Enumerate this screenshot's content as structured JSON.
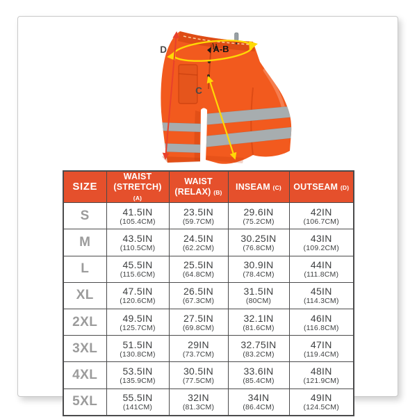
{
  "colors": {
    "header_bg": "#E5502C",
    "header_text": "#FFFFFF",
    "size_text": "#9B9B9B",
    "cell_text": "#3F4142",
    "table_border": "#4A4A4B",
    "page_border": "#C9C9C9",
    "pants_orange": "#F25A1E",
    "stripe_gray": "#A7ADAF",
    "measure_yellow": "#FFD905",
    "measure_red": "#E8412C",
    "label_gray": "#4A4A4A"
  },
  "illustration": {
    "labels": {
      "waist": "A-B",
      "inseam": "C",
      "outseam": "D"
    }
  },
  "table": {
    "columns": [
      {
        "id": "size",
        "title": "SIZE",
        "subtitle": "",
        "key": ""
      },
      {
        "id": "waist-stretch",
        "title": "WAIST",
        "subtitle": "(STRETCH)",
        "key": "(A)"
      },
      {
        "id": "waist-relax",
        "title": "WAIST",
        "subtitle": "(RELAX)",
        "key": "(B)"
      },
      {
        "id": "inseam",
        "title": "INSEAM",
        "subtitle": "",
        "key": "(C)"
      },
      {
        "id": "outseam",
        "title": "OUTSEAM",
        "subtitle": "",
        "key": "(D)"
      }
    ],
    "rows": [
      {
        "size": "S",
        "cells": [
          {
            "in": "41.5IN",
            "cm": "(105.4CM)"
          },
          {
            "in": "23.5IN",
            "cm": "(59.7CM)"
          },
          {
            "in": "29.6IN",
            "cm": "(75.2CM)"
          },
          {
            "in": "42IN",
            "cm": "(106.7CM)"
          }
        ]
      },
      {
        "size": "M",
        "cells": [
          {
            "in": "43.5IN",
            "cm": "(110.5CM)"
          },
          {
            "in": "24.5IN",
            "cm": "(62.2CM)"
          },
          {
            "in": "30.25IN",
            "cm": "(76.8CM)"
          },
          {
            "in": "43IN",
            "cm": "(109.2CM)"
          }
        ]
      },
      {
        "size": "L",
        "cells": [
          {
            "in": "45.5IN",
            "cm": "(115.6CM)"
          },
          {
            "in": "25.5IN",
            "cm": "(64.8CM)"
          },
          {
            "in": "30.9IN",
            "cm": "(78.4CM)"
          },
          {
            "in": "44IN",
            "cm": "(111.8CM)"
          }
        ]
      },
      {
        "size": "XL",
        "cells": [
          {
            "in": "47.5IN",
            "cm": "(120.6CM)"
          },
          {
            "in": "26.5IN",
            "cm": "(67.3CM)"
          },
          {
            "in": "31.5IN",
            "cm": "(80CM)"
          },
          {
            "in": "45IN",
            "cm": "(114.3CM)"
          }
        ]
      },
      {
        "size": "2XL",
        "cells": [
          {
            "in": "49.5IN",
            "cm": "(125.7CM)"
          },
          {
            "in": "27.5IN",
            "cm": "(69.8CM)"
          },
          {
            "in": "32.1IN",
            "cm": "(81.6CM)"
          },
          {
            "in": "46IN",
            "cm": "(116.8CM)"
          }
        ]
      },
      {
        "size": "3XL",
        "cells": [
          {
            "in": "51.5IN",
            "cm": "(130.8CM)"
          },
          {
            "in": "29IN",
            "cm": "(73.7CM)"
          },
          {
            "in": "32.75IN",
            "cm": "(83.2CM)"
          },
          {
            "in": "47IN",
            "cm": "(119.4CM)"
          }
        ]
      },
      {
        "size": "4XL",
        "cells": [
          {
            "in": "53.5IN",
            "cm": "(135.9CM)"
          },
          {
            "in": "30.5IN",
            "cm": "(77.5CM)"
          },
          {
            "in": "33.6IN",
            "cm": "(85.4CM)"
          },
          {
            "in": "48IN",
            "cm": "(121.9CM)"
          }
        ]
      },
      {
        "size": "5XL",
        "cells": [
          {
            "in": "55.5IN",
            "cm": "(141CM)"
          },
          {
            "in": "32IN",
            "cm": "(81.3CM)"
          },
          {
            "in": "34IN",
            "cm": "(86.4CM)"
          },
          {
            "in": "49IN",
            "cm": "(124.5CM)"
          }
        ]
      }
    ]
  }
}
